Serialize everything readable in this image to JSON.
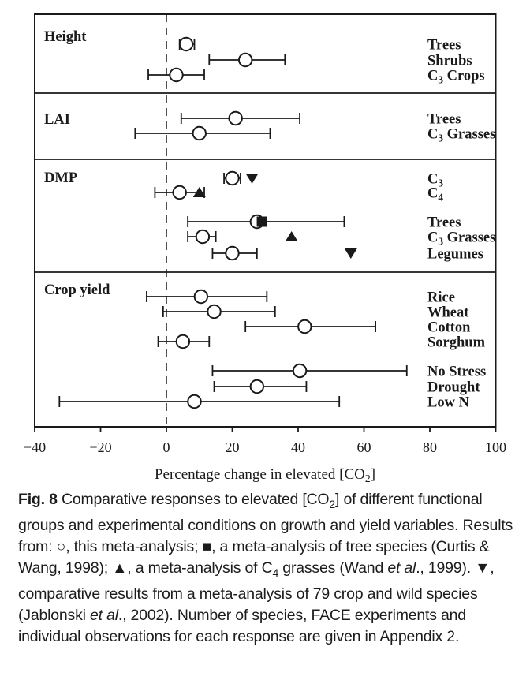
{
  "colors": {
    "ink": "#1a1a1a",
    "background": "#ffffff"
  },
  "chart_data": {
    "type": "forest",
    "title": "",
    "xlabel": "Percentage change in elevated [CO~2~]",
    "xlim": [
      -40,
      100
    ],
    "xticks": [
      -40,
      -20,
      0,
      20,
      40,
      60,
      80,
      100
    ],
    "xtick_labels": [
      "−40",
      "−20",
      "0",
      "20",
      "40",
      "60",
      "80",
      "100"
    ],
    "reference_line_x": 0,
    "grid": false,
    "marker_legend": {
      "circle": "this meta-analysis",
      "square": "a meta-analysis of tree species (Curtis & Wang, 1998)",
      "triangle-up": "a meta-analysis of C4 grasses (Wand et al., 1999)",
      "triangle-down": "comparative results from a meta-analysis of 79 crop and wild species (Jablonski et al., 2002)"
    },
    "sections": [
      {
        "label": "Height",
        "rows": [
          {
            "label": "Trees",
            "mean": 6,
            "ci_low": 4,
            "ci_high": 8.5
          },
          {
            "label": "Shrubs",
            "mean": 24,
            "ci_low": 13,
            "ci_high": 36
          },
          {
            "label": "C~3~ Crops",
            "mean": 3,
            "ci_low": -5.5,
            "ci_high": 11.5
          }
        ]
      },
      {
        "label": "LAI",
        "rows": [
          {
            "label": "Trees",
            "mean": 21,
            "ci_low": 4.5,
            "ci_high": 40.5
          },
          {
            "label": "C~3~ Grasses",
            "mean": 10,
            "ci_low": -9.5,
            "ci_high": 31.5
          }
        ]
      },
      {
        "label": "DMP",
        "rows": [
          {
            "label": "C~3~",
            "mean": 20,
            "ci_low": 17.5,
            "ci_high": 22.5,
            "secondary": {
              "marker": "tri-down",
              "value": 26
            }
          },
          {
            "label": "C~4~",
            "mean": 4,
            "ci_low": -3.5,
            "ci_high": 11.5,
            "secondary": {
              "marker": "tri-up",
              "value": 10
            }
          },
          {
            "label": "Trees",
            "mean": 27.5,
            "ci_low": 6.5,
            "ci_high": 54,
            "secondary": {
              "marker": "square",
              "value": 29
            }
          },
          {
            "label": "C~3~ Grasses",
            "mean": 11,
            "ci_low": 6.5,
            "ci_high": 15,
            "secondary": {
              "marker": "tri-up",
              "value": 38
            }
          },
          {
            "label": "Legumes",
            "mean": 20,
            "ci_low": 14,
            "ci_high": 27.5,
            "secondary": {
              "marker": "tri-down",
              "value": 56
            }
          }
        ]
      },
      {
        "label": "Crop yield",
        "rows": [
          {
            "label": "Rice",
            "mean": 10.5,
            "ci_low": -6,
            "ci_high": 30.5
          },
          {
            "label": "Wheat",
            "mean": 14.5,
            "ci_low": -1,
            "ci_high": 33
          },
          {
            "label": "Cotton",
            "mean": 42,
            "ci_low": 24,
            "ci_high": 63.5
          },
          {
            "label": "Sorghum",
            "mean": 5,
            "ci_low": -2.5,
            "ci_high": 13
          },
          {
            "label": "No Stress",
            "mean": 40.5,
            "ci_low": 14,
            "ci_high": 73
          },
          {
            "label": "Drought",
            "mean": 27.5,
            "ci_low": 14.5,
            "ci_high": 42.5
          },
          {
            "label": "Low N",
            "mean": 8.5,
            "ci_low": -32.5,
            "ci_high": 52.5
          }
        ]
      }
    ]
  },
  "caption": {
    "segments": [
      {
        "text": "Fig. 8",
        "bold": true
      },
      {
        "text": " Comparative responses to elevated [CO"
      },
      {
        "text": "2",
        "sub": true
      },
      {
        "text": "] of different functional groups and experimental conditions on growth and yield variables. Results from: "
      },
      {
        "text": "○",
        "symbol": "open-circle-marker-glyph"
      },
      {
        "text": ", this meta-analysis; "
      },
      {
        "text": "■",
        "symbol": "filled-square-marker-glyph"
      },
      {
        "text": ", a meta-analysis of tree species (Curtis & Wang, 1998); "
      },
      {
        "text": "▲",
        "symbol": "filled-triangle-up-marker-glyph"
      },
      {
        "text": ", a meta-analysis of C"
      },
      {
        "text": "4",
        "sub": true
      },
      {
        "text": " grasses (Wand "
      },
      {
        "text": "et al",
        "italic": true
      },
      {
        "text": "., 1999). "
      },
      {
        "text": "▼",
        "symbol": "filled-triangle-down-marker-glyph"
      },
      {
        "text": ", comparative results from a meta-analysis of 79 crop and wild species (Jablonski "
      },
      {
        "text": "et al",
        "italic": true
      },
      {
        "text": "., 2002). Number of species, FACE experiments and individual observations for each response are given in Appendix 2."
      }
    ]
  }
}
